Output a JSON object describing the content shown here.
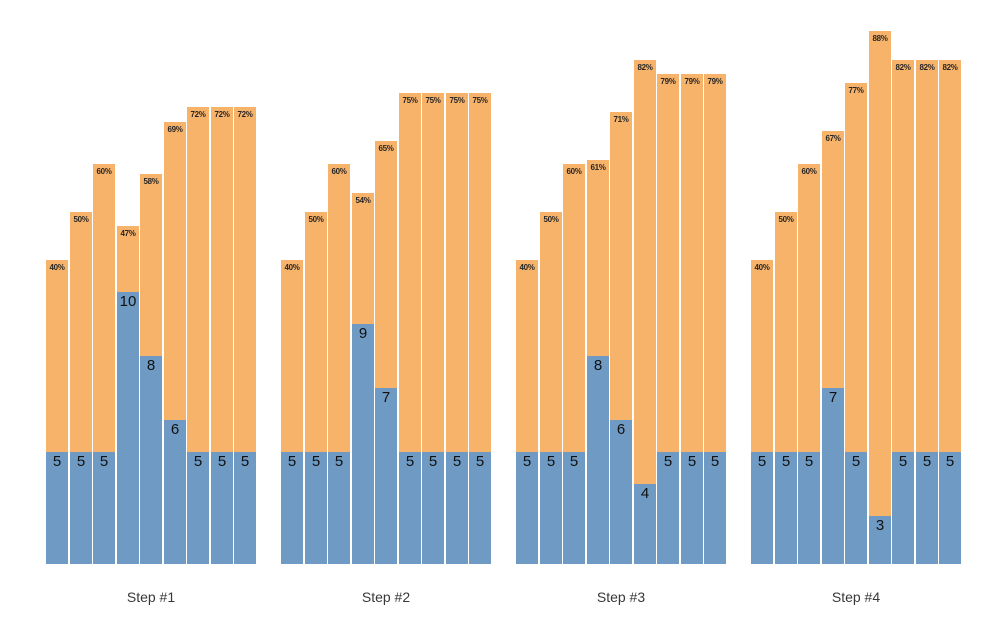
{
  "chart_data": {
    "type": "bar",
    "variant": "grouped-stacked-columns",
    "title": "",
    "xlabel": "",
    "ylabel": "",
    "axes_visible": false,
    "grid": false,
    "legend": "none",
    "series_semantics": {
      "blue_segment": "labeled integer value shown at top of blue segment",
      "orange_segment": "remainder of bar; bar total height encodes percentage label at bar top"
    },
    "groups": [
      {
        "label": "Step #1",
        "bars": [
          {
            "blue": 5,
            "pct": 40
          },
          {
            "blue": 5,
            "pct": 50
          },
          {
            "blue": 5,
            "pct": 60
          },
          {
            "blue": 10,
            "pct": 47
          },
          {
            "blue": 8,
            "pct": 58
          },
          {
            "blue": 6,
            "pct": 69
          },
          {
            "blue": 5,
            "pct": 72
          },
          {
            "blue": 5,
            "pct": 72
          },
          {
            "blue": 5,
            "pct": 72
          }
        ]
      },
      {
        "label": "Step #2",
        "bars": [
          {
            "blue": 5,
            "pct": 40
          },
          {
            "blue": 5,
            "pct": 50
          },
          {
            "blue": 5,
            "pct": 60
          },
          {
            "blue": 9,
            "pct": 54
          },
          {
            "blue": 7,
            "pct": 65
          },
          {
            "blue": 5,
            "pct": 75
          },
          {
            "blue": 5,
            "pct": 75
          },
          {
            "blue": 5,
            "pct": 75
          },
          {
            "blue": 5,
            "pct": 75
          }
        ]
      },
      {
        "label": "Step #3",
        "bars": [
          {
            "blue": 5,
            "pct": 40
          },
          {
            "blue": 5,
            "pct": 50
          },
          {
            "blue": 5,
            "pct": 60
          },
          {
            "blue": 8,
            "pct": 61
          },
          {
            "blue": 6,
            "pct": 71
          },
          {
            "blue": 4,
            "pct": 82
          },
          {
            "blue": 5,
            "pct": 79
          },
          {
            "blue": 5,
            "pct": 79
          },
          {
            "blue": 5,
            "pct": 79
          }
        ]
      },
      {
        "label": "Step #4",
        "bars": [
          {
            "blue": 5,
            "pct": 40
          },
          {
            "blue": 5,
            "pct": 50
          },
          {
            "blue": 5,
            "pct": 60
          },
          {
            "blue": 7,
            "pct": 67
          },
          {
            "blue": 5,
            "pct": 77
          },
          {
            "blue": 3,
            "pct": 88
          },
          {
            "blue": 5,
            "pct": 82
          },
          {
            "blue": 5,
            "pct": 82
          },
          {
            "blue": 5,
            "pct": 82
          }
        ]
      }
    ],
    "colors": {
      "blue": "#6e9ac3",
      "orange": "#f8b36b",
      "pct_label_text": "#262626",
      "blue_label_text": "#111111",
      "step_label_text": "#383838",
      "background": "#ffffff"
    },
    "pct_label_format": "{pct}%"
  }
}
